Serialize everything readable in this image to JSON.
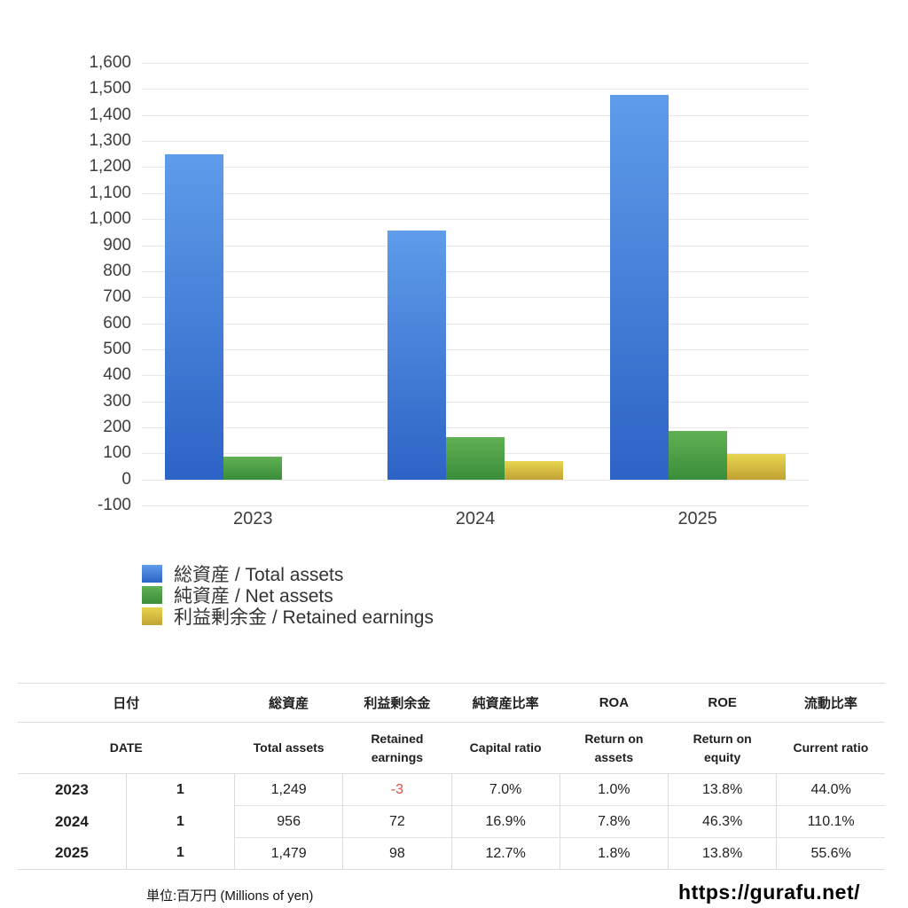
{
  "chart_data": {
    "type": "bar",
    "categories": [
      "2023",
      "2024",
      "2025"
    ],
    "series": [
      {
        "label": "総資産 / Total assets",
        "values": [
          1249,
          956,
          1479
        ],
        "color_top": "#5f9cea",
        "color_bottom": "#2d63c6"
      },
      {
        "label": "純資産 / Net assets",
        "values": [
          87,
          162,
          188
        ],
        "color_top": "#61b054",
        "color_bottom": "#3a8d3a"
      },
      {
        "label": "利益剰余金 / Retained earnings",
        "values": [
          -3,
          72,
          98
        ],
        "color_top": "#e8d54f",
        "color_bottom": "#c2a233"
      }
    ],
    "title": "",
    "xlabel": "",
    "ylabel": "",
    "ylim": [
      -100,
      1600
    ],
    "ytick_step": 100,
    "grid": true,
    "gridline_color": "#e8e8e8",
    "legend_position": "bottom-left"
  },
  "table": {
    "headers_ja": [
      "日付",
      "総資産",
      "利益剰余金",
      "純資産比率",
      "ROA",
      "ROE",
      "流動比率"
    ],
    "headers_en": [
      "DATE",
      "Total assets",
      "Retained earnings",
      "Capital ratio",
      "Return on assets",
      "Return on equity",
      "Current ratio"
    ],
    "rows": [
      {
        "year": "2023",
        "month": "1",
        "total_assets": "1,249",
        "retained_earnings": "-3",
        "capital_ratio": "7.0%",
        "roa": "1.0%",
        "roe": "13.8%",
        "current_ratio": "44.0%"
      },
      {
        "year": "2024",
        "month": "1",
        "total_assets": "956",
        "retained_earnings": "72",
        "capital_ratio": "16.9%",
        "roa": "7.8%",
        "roe": "46.3%",
        "current_ratio": "110.1%"
      },
      {
        "year": "2025",
        "month": "1",
        "total_assets": "1,479",
        "retained_earnings": "98",
        "capital_ratio": "12.7%",
        "roa": "1.8%",
        "roe": "13.8%",
        "current_ratio": "55.6%"
      }
    ],
    "negative_color": "#e0503f"
  },
  "footer": {
    "unit_note": "単位:百万円 (Millions of yen)",
    "site_url": "https://gurafu.net/"
  }
}
